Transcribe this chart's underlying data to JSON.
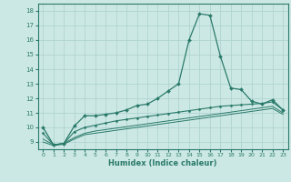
{
  "xlabel": "Humidex (Indice chaleur)",
  "xlim": [
    -0.5,
    23.5
  ],
  "ylim": [
    8.5,
    18.5
  ],
  "yticks": [
    9,
    10,
    11,
    12,
    13,
    14,
    15,
    16,
    17,
    18
  ],
  "xticks": [
    0,
    1,
    2,
    3,
    4,
    5,
    6,
    7,
    8,
    9,
    10,
    11,
    12,
    13,
    14,
    15,
    16,
    17,
    18,
    19,
    20,
    21,
    22,
    23
  ],
  "bg_color": "#cce8e4",
  "grid_color": "#b0d4d0",
  "line_color": "#2a7a6a",
  "line1_x": [
    0,
    1,
    2,
    3,
    4,
    5,
    6,
    7,
    8,
    9,
    10,
    11,
    12,
    13,
    14,
    15,
    16,
    17,
    18,
    19,
    20,
    21,
    22,
    23
  ],
  "line1_y": [
    10.0,
    8.8,
    8.9,
    10.1,
    10.8,
    10.8,
    10.9,
    11.0,
    11.2,
    11.5,
    11.6,
    12.0,
    12.5,
    13.0,
    16.0,
    17.8,
    17.7,
    14.9,
    12.7,
    12.6,
    11.8,
    11.6,
    11.9,
    11.2
  ],
  "line2_x": [
    0,
    1,
    2,
    3,
    4,
    5,
    6,
    7,
    8,
    9,
    10,
    11,
    12,
    13,
    14,
    15,
    16,
    17,
    18,
    19,
    20,
    21,
    22,
    23
  ],
  "line2_y": [
    9.6,
    8.8,
    8.9,
    9.7,
    10.0,
    10.15,
    10.3,
    10.45,
    10.55,
    10.65,
    10.75,
    10.85,
    10.95,
    11.05,
    11.15,
    11.25,
    11.35,
    11.45,
    11.5,
    11.55,
    11.6,
    11.65,
    11.75,
    11.2
  ],
  "line3_x": [
    0,
    1,
    2,
    3,
    4,
    5,
    6,
    7,
    8,
    9,
    10,
    11,
    12,
    13,
    14,
    15,
    16,
    17,
    18,
    19,
    20,
    21,
    22,
    23
  ],
  "line3_y": [
    9.2,
    8.8,
    8.9,
    9.3,
    9.6,
    9.75,
    9.85,
    9.95,
    10.05,
    10.15,
    10.25,
    10.35,
    10.45,
    10.55,
    10.65,
    10.75,
    10.85,
    10.95,
    11.05,
    11.15,
    11.25,
    11.35,
    11.45,
    11.0
  ],
  "line4_x": [
    0,
    1,
    2,
    3,
    4,
    5,
    6,
    7,
    8,
    9,
    10,
    11,
    12,
    13,
    14,
    15,
    16,
    17,
    18,
    19,
    20,
    21,
    22,
    23
  ],
  "line4_y": [
    9.0,
    8.75,
    8.85,
    9.2,
    9.5,
    9.6,
    9.7,
    9.8,
    9.9,
    10.0,
    10.1,
    10.2,
    10.3,
    10.4,
    10.5,
    10.6,
    10.7,
    10.8,
    10.9,
    11.0,
    11.1,
    11.2,
    11.3,
    10.9
  ]
}
